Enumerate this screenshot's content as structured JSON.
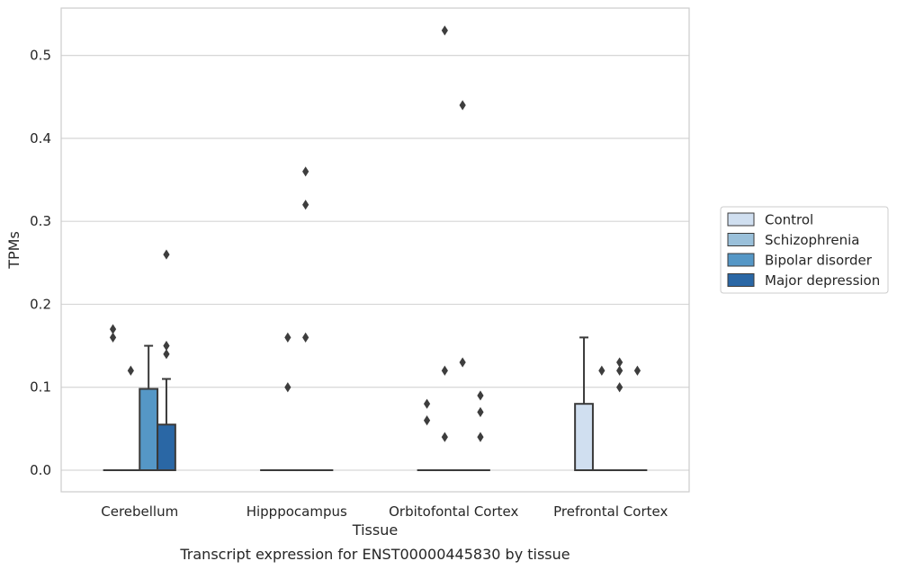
{
  "caption": "Transcript expression for ENST00000445830 by tissue",
  "chart_data": {
    "type": "box",
    "xlabel": "Tissue",
    "ylabel": "TPMs",
    "ylim": [
      -0.026,
      0.557
    ],
    "yticks": [
      "0.0",
      "0.1",
      "0.2",
      "0.3",
      "0.4",
      "0.5"
    ],
    "grid": "horizontal",
    "legend_position": "right",
    "categories": [
      "Cerebellum",
      "Hipppocampus",
      "Orbitofontal Cortex",
      "Prefrontal Cortex"
    ],
    "series": [
      {
        "name": "Control",
        "color": "#d0dff0",
        "boxes": [
          {
            "q1": 0,
            "median": 0,
            "q3": 0,
            "whisker_low": 0,
            "whisker_high": 0,
            "outliers": [
              0.16,
              0.17
            ]
          },
          {
            "q1": 0,
            "median": 0,
            "q3": 0,
            "whisker_low": 0,
            "whisker_high": 0,
            "outliers": []
          },
          {
            "q1": 0,
            "median": 0,
            "q3": 0,
            "whisker_low": 0,
            "whisker_high": 0,
            "outliers": [
              0.06,
              0.08
            ]
          },
          {
            "q1": 0,
            "median": 0,
            "q3": 0.08,
            "whisker_low": 0,
            "whisker_high": 0.16,
            "outliers": []
          }
        ]
      },
      {
        "name": "Schizophrenia",
        "color": "#9ac0da",
        "boxes": [
          {
            "q1": 0,
            "median": 0,
            "q3": 0,
            "whisker_low": 0,
            "whisker_high": 0,
            "outliers": [
              0.12
            ]
          },
          {
            "q1": 0,
            "median": 0,
            "q3": 0,
            "whisker_low": 0,
            "whisker_high": 0,
            "outliers": [
              0.1,
              0.16
            ]
          },
          {
            "q1": 0,
            "median": 0,
            "q3": 0,
            "whisker_low": 0,
            "whisker_high": 0,
            "outliers": [
              0.04,
              0.12,
              0.53
            ]
          },
          {
            "q1": 0,
            "median": 0,
            "q3": 0,
            "whisker_low": 0,
            "whisker_high": 0,
            "outliers": [
              0.12
            ]
          }
        ]
      },
      {
        "name": "Bipolar disorder",
        "color": "#5597c6",
        "boxes": [
          {
            "q1": 0,
            "median": 0,
            "q3": 0.098,
            "whisker_low": 0,
            "whisker_high": 0.15,
            "outliers": []
          },
          {
            "q1": 0,
            "median": 0,
            "q3": 0,
            "whisker_low": 0,
            "whisker_high": 0,
            "outliers": [
              0.16,
              0.32,
              0.36
            ]
          },
          {
            "q1": 0,
            "median": 0,
            "q3": 0,
            "whisker_low": 0,
            "whisker_high": 0,
            "outliers": [
              0.13,
              0.44
            ]
          },
          {
            "q1": 0,
            "median": 0,
            "q3": 0,
            "whisker_low": 0,
            "whisker_high": 0,
            "outliers": [
              0.1,
              0.12,
              0.13
            ]
          }
        ]
      },
      {
        "name": "Major depression",
        "color": "#2a67a5",
        "boxes": [
          {
            "q1": 0,
            "median": 0,
            "q3": 0.055,
            "whisker_low": 0,
            "whisker_high": 0.11,
            "outliers": [
              0.14,
              0.15,
              0.26
            ]
          },
          {
            "q1": 0,
            "median": 0,
            "q3": 0,
            "whisker_low": 0,
            "whisker_high": 0,
            "outliers": []
          },
          {
            "q1": 0,
            "median": 0,
            "q3": 0,
            "whisker_low": 0,
            "whisker_high": 0,
            "outliers": [
              0.04,
              0.07,
              0.09
            ]
          },
          {
            "q1": 0,
            "median": 0,
            "q3": 0,
            "whisker_low": 0,
            "whisker_high": 0,
            "outliers": [
              0.12
            ]
          }
        ]
      }
    ]
  }
}
